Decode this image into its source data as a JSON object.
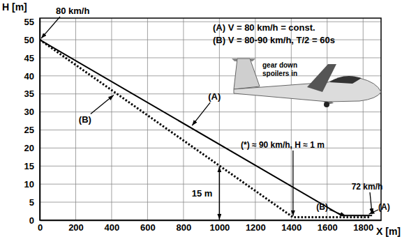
{
  "chart_data": {
    "type": "line",
    "x_label": "X [m]",
    "y_label": "H [m]",
    "xlim": [
      0,
      1900
    ],
    "ylim": [
      0,
      56
    ],
    "xticks": [
      0,
      200,
      400,
      600,
      800,
      1000,
      1200,
      1400,
      1600,
      1800
    ],
    "yticks": [
      0,
      5,
      10,
      15,
      20,
      25,
      30,
      35,
      40,
      45,
      50,
      55
    ],
    "grid": true,
    "series": [
      {
        "name": "(A)",
        "color": "#000000",
        "line_style": "solid",
        "x": [
          0,
          1680,
          1850
        ],
        "values": [
          50,
          1.3,
          1.3
        ]
      },
      {
        "name": "(B)",
        "color": "#000000",
        "line_style": "dotted",
        "x": [
          0,
          1410,
          1840
        ],
        "values": [
          50,
          0.8,
          0.8
        ]
      }
    ],
    "annotations": [
      "80 km/h",
      "(A) V = 80 km/h = const.",
      "(B) V = 80-90 km/h, T/2 = 60s",
      "gear down",
      "spoilers in",
      "(*) ≈ 90 km/h, H ≈ 1 m",
      "72 km/h",
      "(B)",
      "(A)"
    ],
    "dimension": {
      "label": "15 m",
      "x": 1000,
      "from": 0,
      "to": 15
    }
  }
}
